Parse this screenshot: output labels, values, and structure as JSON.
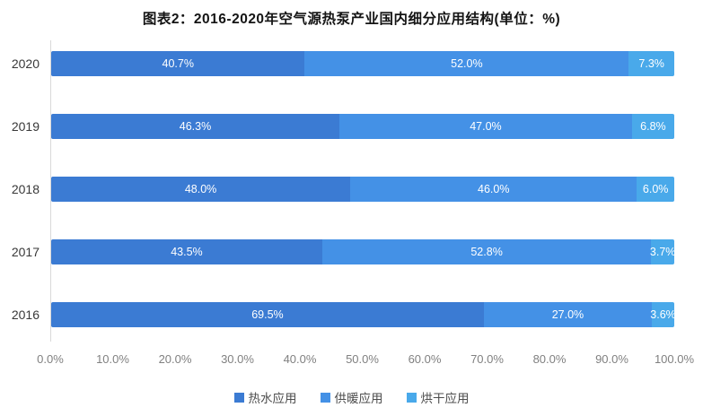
{
  "title": "图表2：2016-2020年空气源热泵产业国内细分应用结构(单位：%)",
  "chart_data": {
    "type": "bar",
    "orientation": "horizontal",
    "stacked": true,
    "title": "图表2：2016-2020年空气源热泵产业国内细分应用结构(单位：%)",
    "categories": [
      "2020",
      "2019",
      "2018",
      "2017",
      "2016"
    ],
    "series": [
      {
        "id": "hot-water",
        "name": "热水应用",
        "color": "#3b7bd3",
        "values": [
          40.7,
          46.3,
          48.0,
          43.5,
          69.5
        ],
        "labels": [
          "40.7%",
          "46.3%",
          "48.0%",
          "43.5%",
          "69.5%"
        ]
      },
      {
        "id": "heating",
        "name": "供暖应用",
        "color": "#4491e6",
        "values": [
          52.0,
          47.0,
          46.0,
          52.8,
          27.0
        ],
        "labels": [
          "52.0%",
          "47.0%",
          "46.0%",
          "52.8%",
          "27.0%"
        ]
      },
      {
        "id": "drying",
        "name": "烘干应用",
        "color": "#49a9ea",
        "values": [
          7.3,
          6.8,
          6.0,
          3.7,
          3.6
        ],
        "labels": [
          "7.3%",
          "6.8%",
          "6.0%",
          "3.7%",
          "3.6%"
        ]
      }
    ],
    "xlabel": "",
    "ylabel": "",
    "xlim": [
      0,
      100
    ],
    "x_ticks": [
      "0.0%",
      "10.0%",
      "20.0%",
      "30.0%",
      "40.0%",
      "50.0%",
      "60.0%",
      "70.0%",
      "80.0%",
      "90.0%",
      "100.0%"
    ],
    "grid": false,
    "legend_position": "bottom",
    "value_labels_color": "#ffffff",
    "axis_line_color": "#d9d9d9"
  }
}
